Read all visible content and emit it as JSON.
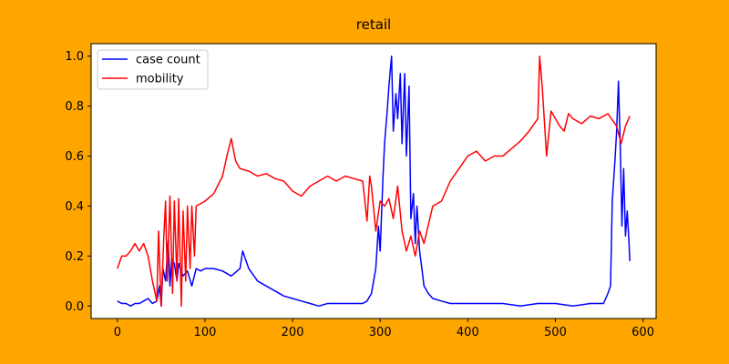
{
  "chart_data": {
    "type": "line",
    "title": "retail",
    "xlabel": "",
    "ylabel": "",
    "xlim": [
      -30,
      615
    ],
    "ylim": [
      -0.05,
      1.05
    ],
    "xticks": [
      0,
      100,
      200,
      300,
      400,
      500,
      600
    ],
    "yticks": [
      0.0,
      0.2,
      0.4,
      0.6,
      0.8,
      1.0
    ],
    "xtick_labels": [
      "0",
      "100",
      "200",
      "300",
      "400",
      "500",
      "600"
    ],
    "ytick_labels": [
      "0.0",
      "0.2",
      "0.4",
      "0.6",
      "0.8",
      "1.0"
    ],
    "grid": false,
    "legend_position": "upper-left",
    "series": [
      {
        "name": "case count",
        "color": "#0000ff",
        "x": [
          0,
          5,
          10,
          15,
          20,
          25,
          30,
          35,
          40,
          45,
          48,
          50,
          52,
          55,
          58,
          60,
          62,
          65,
          68,
          70,
          75,
          80,
          85,
          90,
          95,
          100,
          110,
          120,
          130,
          140,
          143,
          150,
          160,
          170,
          180,
          190,
          200,
          210,
          220,
          230,
          240,
          260,
          280,
          285,
          290,
          295,
          298,
          300,
          303,
          305,
          308,
          310,
          313,
          315,
          318,
          320,
          323,
          325,
          328,
          330,
          333,
          335,
          338,
          340,
          342,
          345,
          348,
          350,
          355,
          360,
          370,
          380,
          400,
          420,
          440,
          460,
          480,
          500,
          520,
          540,
          555,
          560,
          563,
          565,
          568,
          570,
          572,
          574,
          576,
          578,
          580,
          582,
          584,
          585
        ],
        "y": [
          0.02,
          0.01,
          0.01,
          0.0,
          0.01,
          0.01,
          0.02,
          0.03,
          0.01,
          0.02,
          0.08,
          0.0,
          0.15,
          0.1,
          0.26,
          0.08,
          0.19,
          0.17,
          0.1,
          0.17,
          0.12,
          0.14,
          0.08,
          0.15,
          0.14,
          0.15,
          0.15,
          0.14,
          0.12,
          0.15,
          0.22,
          0.15,
          0.1,
          0.08,
          0.06,
          0.04,
          0.03,
          0.02,
          0.01,
          0.0,
          0.01,
          0.01,
          0.01,
          0.02,
          0.05,
          0.15,
          0.32,
          0.22,
          0.5,
          0.65,
          0.78,
          0.88,
          1.0,
          0.7,
          0.85,
          0.75,
          0.93,
          0.65,
          0.93,
          0.6,
          0.88,
          0.35,
          0.45,
          0.25,
          0.4,
          0.22,
          0.14,
          0.08,
          0.05,
          0.03,
          0.02,
          0.01,
          0.01,
          0.01,
          0.01,
          0.0,
          0.01,
          0.01,
          0.0,
          0.01,
          0.01,
          0.05,
          0.08,
          0.42,
          0.58,
          0.7,
          0.9,
          0.65,
          0.32,
          0.55,
          0.28,
          0.38,
          0.26,
          0.18
        ]
      },
      {
        "name": "mobility",
        "color": "#ff0000",
        "x": [
          0,
          5,
          10,
          15,
          20,
          25,
          30,
          35,
          40,
          45,
          47,
          50,
          53,
          55,
          57,
          60,
          63,
          65,
          68,
          70,
          73,
          75,
          78,
          80,
          83,
          85,
          88,
          90,
          100,
          110,
          120,
          125,
          130,
          135,
          140,
          150,
          160,
          170,
          180,
          190,
          200,
          210,
          220,
          230,
          240,
          250,
          260,
          270,
          280,
          285,
          288,
          290,
          295,
          300,
          305,
          310,
          315,
          320,
          325,
          330,
          335,
          340,
          345,
          350,
          360,
          370,
          380,
          390,
          400,
          410,
          420,
          430,
          440,
          450,
          460,
          470,
          480,
          482,
          485,
          490,
          495,
          500,
          505,
          510,
          515,
          520,
          530,
          540,
          550,
          560,
          570,
          575,
          580,
          585
        ],
        "y": [
          0.15,
          0.2,
          0.2,
          0.22,
          0.25,
          0.22,
          0.25,
          0.2,
          0.1,
          0.02,
          0.3,
          0.0,
          0.28,
          0.42,
          0.1,
          0.44,
          0.05,
          0.42,
          0.1,
          0.43,
          0.0,
          0.38,
          0.1,
          0.4,
          0.15,
          0.4,
          0.2,
          0.4,
          0.42,
          0.45,
          0.52,
          0.6,
          0.67,
          0.58,
          0.55,
          0.54,
          0.52,
          0.53,
          0.51,
          0.5,
          0.46,
          0.44,
          0.48,
          0.5,
          0.52,
          0.5,
          0.52,
          0.51,
          0.5,
          0.34,
          0.52,
          0.48,
          0.3,
          0.42,
          0.4,
          0.43,
          0.35,
          0.48,
          0.3,
          0.22,
          0.28,
          0.2,
          0.3,
          0.25,
          0.4,
          0.42,
          0.5,
          0.55,
          0.6,
          0.62,
          0.58,
          0.6,
          0.6,
          0.63,
          0.66,
          0.7,
          0.75,
          1.0,
          0.88,
          0.6,
          0.78,
          0.75,
          0.72,
          0.7,
          0.77,
          0.75,
          0.73,
          0.76,
          0.75,
          0.77,
          0.72,
          0.65,
          0.72,
          0.76
        ]
      }
    ]
  }
}
